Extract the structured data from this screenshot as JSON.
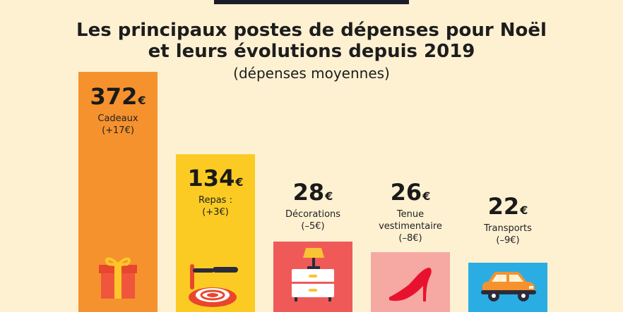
{
  "header": {
    "title_line1": "Les principaux postes de dépenses pour Noël",
    "title_line2": "et leurs évolutions depuis 2019",
    "subtitle": "(dépenses moyennes)"
  },
  "chart_data": {
    "type": "bar",
    "title": "Les principaux postes de dépenses pour Noël et leurs évolutions depuis 2019",
    "subtitle": "(dépenses moyennes)",
    "currency": "€",
    "categories": [
      "Cadeaux",
      "Repas :",
      "Décorations",
      "Tenue vestimentaire",
      "Transports"
    ],
    "values": [
      372,
      134,
      28,
      26,
      22
    ],
    "changes": [
      "(+17€)",
      "(+3€)",
      "(–5€)",
      "(–8€)",
      "(–9€)"
    ],
    "colors": [
      "#f5922e",
      "#fccb23",
      "#ef5a58",
      "#f6a8a2",
      "#2aade3"
    ],
    "icons": [
      "gift-icon",
      "plate-icon",
      "lamp-icon",
      "high-heel-icon",
      "car-icon"
    ]
  }
}
